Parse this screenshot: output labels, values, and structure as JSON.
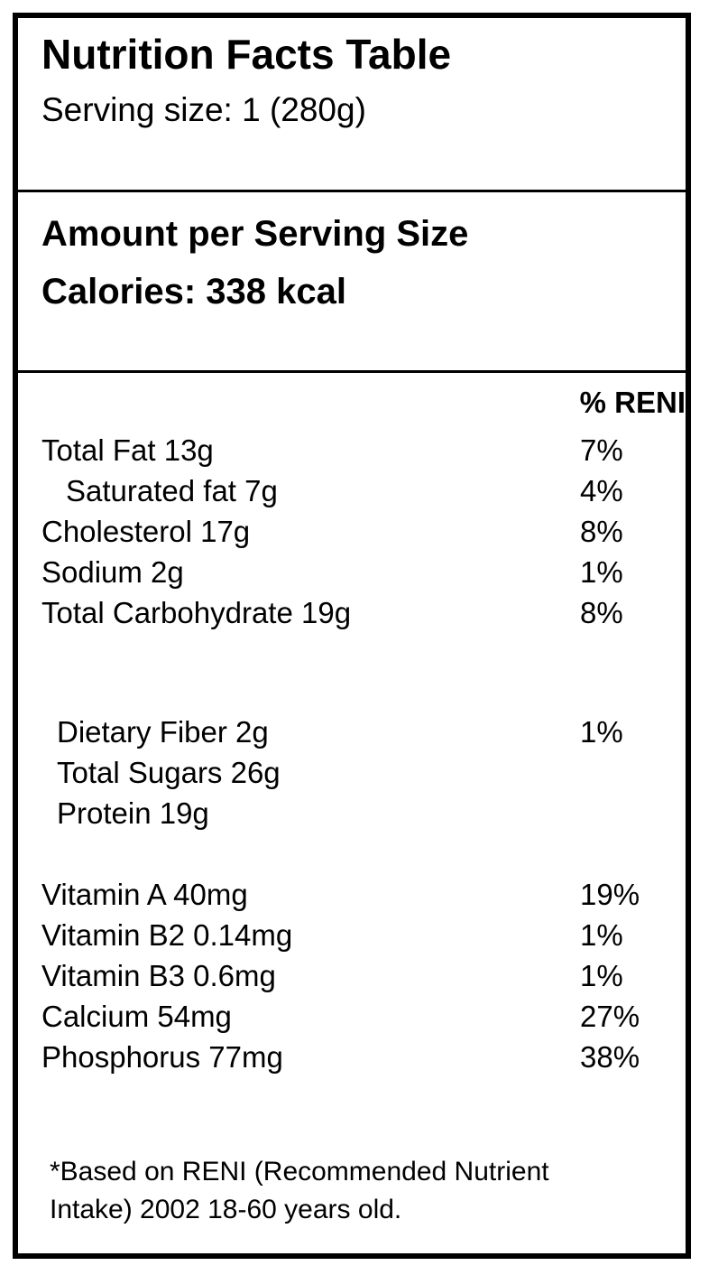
{
  "header": {
    "title": "Nutrition Facts Table",
    "serving_size": "Serving size: 1 (280g)"
  },
  "summary": {
    "amount_per_serving": "Amount per Serving Size",
    "calories": "Calories: 338 kcal"
  },
  "table": {
    "percent_header": "% RENI",
    "rows": [
      {
        "name": "Total Fat 13g",
        "percent": "7%"
      },
      {
        "name": "Saturated fat 7g",
        "percent": "4%"
      },
      {
        "name": "Cholesterol 17g",
        "percent": "8%"
      },
      {
        "name": "Sodium 2g",
        "percent": "1%"
      },
      {
        "name": "Total Carbohydrate 19g",
        "percent": "8%"
      },
      {
        "name": "Dietary Fiber 2g",
        "percent": "1%"
      },
      {
        "name": "Total Sugars 26g",
        "percent": ""
      },
      {
        "name": "Protein 19g",
        "percent": ""
      },
      {
        "name": "Vitamin A 40mg",
        "percent": "19%"
      },
      {
        "name": "Vitamin B2 0.14mg",
        "percent": "1%"
      },
      {
        "name": "Vitamin B3 0.6mg",
        "percent": "1%"
      },
      {
        "name": "Calcium 54mg",
        "percent": "27%"
      },
      {
        "name": "Phosphorus 77mg",
        "percent": "38%"
      }
    ]
  },
  "footnote": "*Based on RENI (Recommended Nutrient Intake) 2002 18-60 years old.",
  "colors": {
    "text": "#000000",
    "border": "#000000",
    "background": "#ffffff"
  }
}
